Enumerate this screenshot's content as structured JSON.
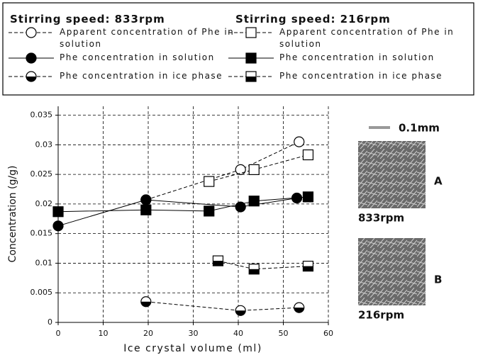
{
  "chart_data": {
    "type": "scatter-line",
    "legend_titles": [
      "Stirring speed: 833rpm",
      "Stirring speed: 216rpm"
    ],
    "xlabel": "Ice crystal volume (ml)",
    "ylabel": "Concentration (g/g)",
    "xlim": [
      0,
      60
    ],
    "xticks": [
      0,
      10,
      20,
      30,
      40,
      50,
      60
    ],
    "ylim": [
      0,
      0.0365
    ],
    "yticks": [
      0,
      0.005,
      0.01,
      0.015,
      0.02,
      0.025,
      0.03,
      0.035
    ],
    "grid": true,
    "series": [
      {
        "name": "Apparent concentration of Phe in solution",
        "marker": "circle-open",
        "dashed": true,
        "color": "#000000",
        "x": [
          19.5,
          40.5,
          53.5
        ],
        "values": [
          0.0207,
          0.0258,
          0.0305
        ]
      },
      {
        "name": "Phe concentration in solution",
        "marker": "circle-filled",
        "dashed": false,
        "color": "#000000",
        "x": [
          0,
          19.5,
          40.5,
          53
        ],
        "values": [
          0.0163,
          0.0207,
          0.0195,
          0.021
        ]
      },
      {
        "name": "Phe concentration in ice phase",
        "marker": "circle-half",
        "dashed": true,
        "color": "#000000",
        "x": [
          19.5,
          40.5,
          53.5
        ],
        "values": [
          0.0035,
          0.002,
          0.0025
        ]
      },
      {
        "name": "Apparent concentration of Phe in solution",
        "marker": "square-open",
        "dashed": true,
        "color": "#000000",
        "x": [
          33.5,
          43.5,
          55.5
        ],
        "values": [
          0.0238,
          0.0258,
          0.0283
        ]
      },
      {
        "name": "Phe concentration in solution",
        "marker": "square-filled",
        "dashed": false,
        "color": "#000000",
        "x": [
          0,
          19.5,
          33.5,
          43.5,
          55.5
        ],
        "values": [
          0.0187,
          0.019,
          0.0188,
          0.0205,
          0.0212
        ]
      },
      {
        "name": "Phe concentration in ice phase",
        "marker": "square-half",
        "dashed": true,
        "color": "#000000",
        "x": [
          35.5,
          43.5,
          55.5
        ],
        "values": [
          0.0104,
          0.009,
          0.0095
        ]
      }
    ],
    "scale_label": "0.1mm",
    "photos": [
      {
        "letter": "A",
        "caption": "833rpm"
      },
      {
        "letter": "B",
        "caption": "216rpm"
      }
    ]
  }
}
